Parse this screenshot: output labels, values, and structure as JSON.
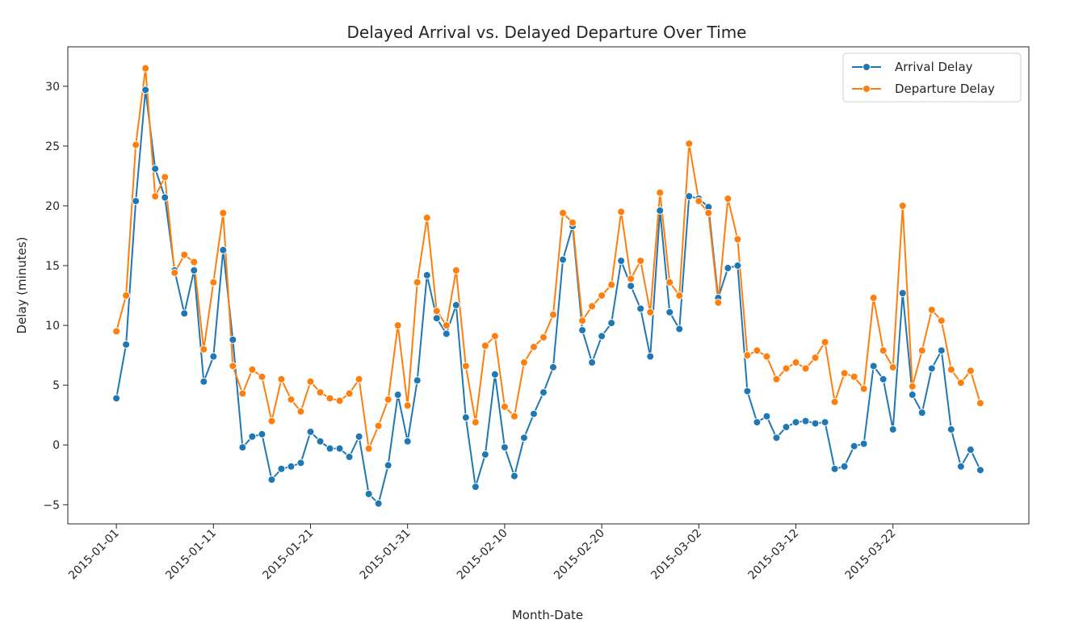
{
  "chart_data": {
    "type": "line",
    "title": "Delayed Arrival vs. Delayed Departure Over Time",
    "xlabel": "Month-Date",
    "ylabel": "Delay (minutes)",
    "x_start": "2015-01-01",
    "x_end": "2015-03-31",
    "xlim": [
      "2014-12-27",
      "2015-04-05"
    ],
    "ylim": [
      -6.6,
      33.3
    ],
    "x_ticks": [
      "2015-01-01",
      "2015-01-11",
      "2015-01-21",
      "2015-01-31",
      "2015-02-10",
      "2015-02-20",
      "2015-03-02",
      "2015-03-12",
      "2015-03-22"
    ],
    "y_ticks": [
      -5,
      0,
      5,
      10,
      15,
      20,
      25,
      30
    ],
    "grid": false,
    "legend_position": "top-right",
    "series": [
      {
        "name": "Arrival Delay",
        "color": "#1f77b4",
        "values": [
          3.9,
          8.4,
          20.4,
          29.7,
          23.1,
          20.7,
          14.6,
          11.0,
          14.6,
          5.3,
          7.4,
          16.3,
          8.8,
          -0.2,
          0.7,
          0.9,
          -2.9,
          -2.0,
          -1.8,
          -1.5,
          1.1,
          0.3,
          -0.3,
          -0.3,
          -1.0,
          0.7,
          -4.1,
          -4.9,
          -1.7,
          4.2,
          0.3,
          5.4,
          14.2,
          10.6,
          9.3,
          11.7,
          2.3,
          -3.5,
          -0.8,
          5.9,
          -0.2,
          -2.6,
          0.6,
          2.6,
          4.4,
          6.5,
          15.5,
          18.3,
          9.6,
          6.9,
          9.1,
          10.2,
          15.4,
          13.3,
          11.4,
          7.4,
          19.6,
          11.1,
          9.7,
          20.8,
          20.6,
          19.9,
          12.3,
          14.8,
          15.0,
          4.5,
          1.9,
          2.4,
          0.6,
          1.5,
          1.9,
          2.0,
          1.8,
          1.9,
          -2.0,
          -1.8,
          -0.1,
          0.1,
          6.6,
          5.5,
          1.3,
          12.7,
          4.2,
          2.7,
          6.4,
          7.9,
          1.3,
          -1.8,
          -0.4,
          -2.1
        ]
      },
      {
        "name": "Departure Delay",
        "color": "#ff7f0e",
        "values": [
          9.5,
          12.5,
          25.1,
          31.5,
          20.8,
          22.4,
          14.4,
          15.9,
          15.3,
          8.0,
          13.6,
          19.4,
          6.6,
          4.3,
          6.3,
          5.7,
          2.0,
          5.5,
          3.8,
          2.8,
          5.3,
          4.4,
          3.9,
          3.7,
          4.3,
          5.5,
          -0.3,
          1.6,
          3.8,
          10.0,
          3.3,
          13.6,
          19.0,
          11.2,
          10.0,
          14.6,
          6.6,
          1.9,
          8.3,
          9.1,
          3.2,
          2.4,
          6.9,
          8.2,
          9.0,
          10.9,
          19.4,
          18.6,
          10.4,
          11.6,
          12.5,
          13.4,
          19.5,
          13.9,
          15.4,
          11.1,
          21.1,
          13.6,
          12.5,
          25.2,
          20.4,
          19.4,
          11.9,
          20.6,
          17.2,
          7.5,
          7.9,
          7.4,
          5.5,
          6.4,
          6.9,
          6.4,
          7.3,
          8.6,
          3.6,
          6.0,
          5.7,
          4.7,
          12.3,
          7.9,
          6.5,
          20.0,
          4.9,
          7.9,
          11.3,
          10.4,
          6.3,
          5.2,
          6.2,
          3.5
        ]
      }
    ]
  }
}
